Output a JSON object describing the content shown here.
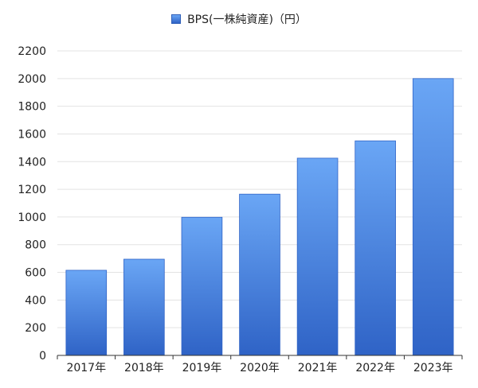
{
  "chart_data": {
    "type": "bar",
    "categories": [
      "2017年",
      "2018年",
      "2019年",
      "2020年",
      "2021年",
      "2022年",
      "2023年"
    ],
    "series": [
      {
        "name": "BPS(一株純資産)（円）",
        "values": [
          615,
          695,
          998,
          1165,
          1425,
          1550,
          2000
        ]
      }
    ],
    "ylim": [
      0,
      2200
    ],
    "y_ticks": [
      0,
      200,
      400,
      600,
      800,
      1000,
      1200,
      1400,
      1600,
      1800,
      2000,
      2200
    ],
    "grid": true,
    "legend": "top-center",
    "colors": {
      "bar_top": "#6aa6f5",
      "bar_bottom": "#2f63c6",
      "grid": "#e3e3e3",
      "axis": "#333333"
    }
  }
}
